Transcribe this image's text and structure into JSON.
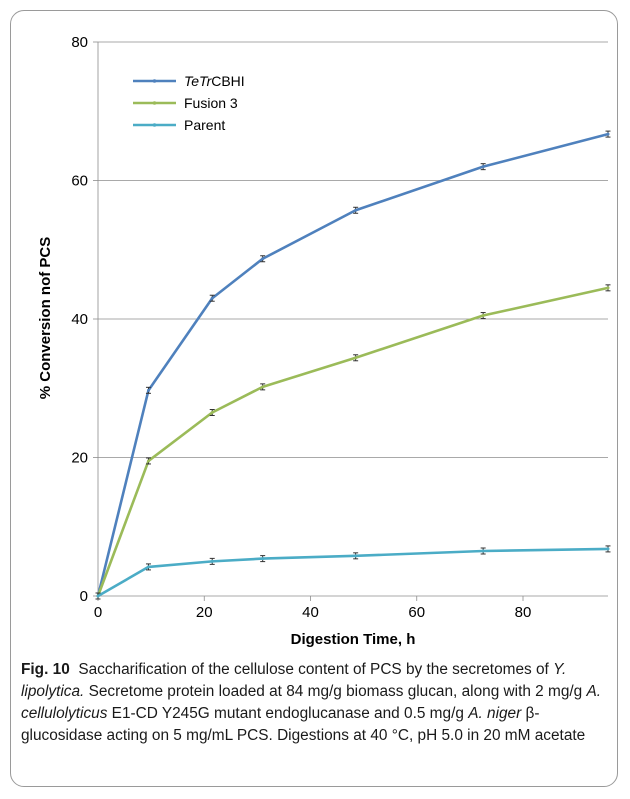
{
  "chart_data": {
    "type": "line",
    "xlabel": "Digestion Time, h",
    "ylabel": "% Conversion nof PCS",
    "xlim": [
      0,
      96
    ],
    "ylim": [
      0,
      80
    ],
    "xticks": [
      0,
      20,
      40,
      60,
      80
    ],
    "yticks": [
      0,
      20,
      40,
      60,
      80
    ],
    "grid": "horizontal",
    "legend_position": "top-left",
    "series": [
      {
        "name": "TeTrCBHI",
        "name_parts": [
          {
            "text": "TeTr",
            "italic": true
          },
          {
            "text": "CBHI",
            "italic": false
          }
        ],
        "color": "#4f81bd",
        "x": [
          0,
          9.5,
          21.5,
          31,
          48.5,
          72.5,
          96
        ],
        "y": [
          0,
          29.7,
          43,
          48.7,
          55.7,
          62,
          66.7
        ]
      },
      {
        "name": "Fusion 3",
        "color": "#9bbb59",
        "x": [
          0,
          9.5,
          21.5,
          31,
          48.5,
          72.5,
          96
        ],
        "y": [
          0,
          19.5,
          26.5,
          30.2,
          34.4,
          40.5,
          44.5
        ]
      },
      {
        "name": "Parent",
        "color": "#4bacc6",
        "x": [
          0,
          9.5,
          21.5,
          31,
          48.5,
          72.5,
          96
        ],
        "y": [
          0,
          4.2,
          5,
          5.4,
          5.8,
          6.5,
          6.8
        ]
      }
    ]
  },
  "caption": {
    "label": "Fig. 10",
    "segments": [
      {
        "text": "Saccharification of the cellulose content of PCS by the secretomes of ",
        "italic": false
      },
      {
        "text": "Y. lipolytica.",
        "italic": true
      },
      {
        "text": " Secretome protein loaded at 84 mg/g biomass glucan, along with 2 mg/g ",
        "italic": false
      },
      {
        "text": "A. cellulolyticus",
        "italic": true
      },
      {
        "text": " E1-CD Y245G mutant endoglucanase and 0.5 mg/g ",
        "italic": false
      },
      {
        "text": "A. niger",
        "italic": true
      },
      {
        "text": " β-glucosidase acting on 5 mg/mL PCS. Digestions at 40 °C, pH 5.0 in 20 mM acetate",
        "italic": false
      }
    ]
  }
}
